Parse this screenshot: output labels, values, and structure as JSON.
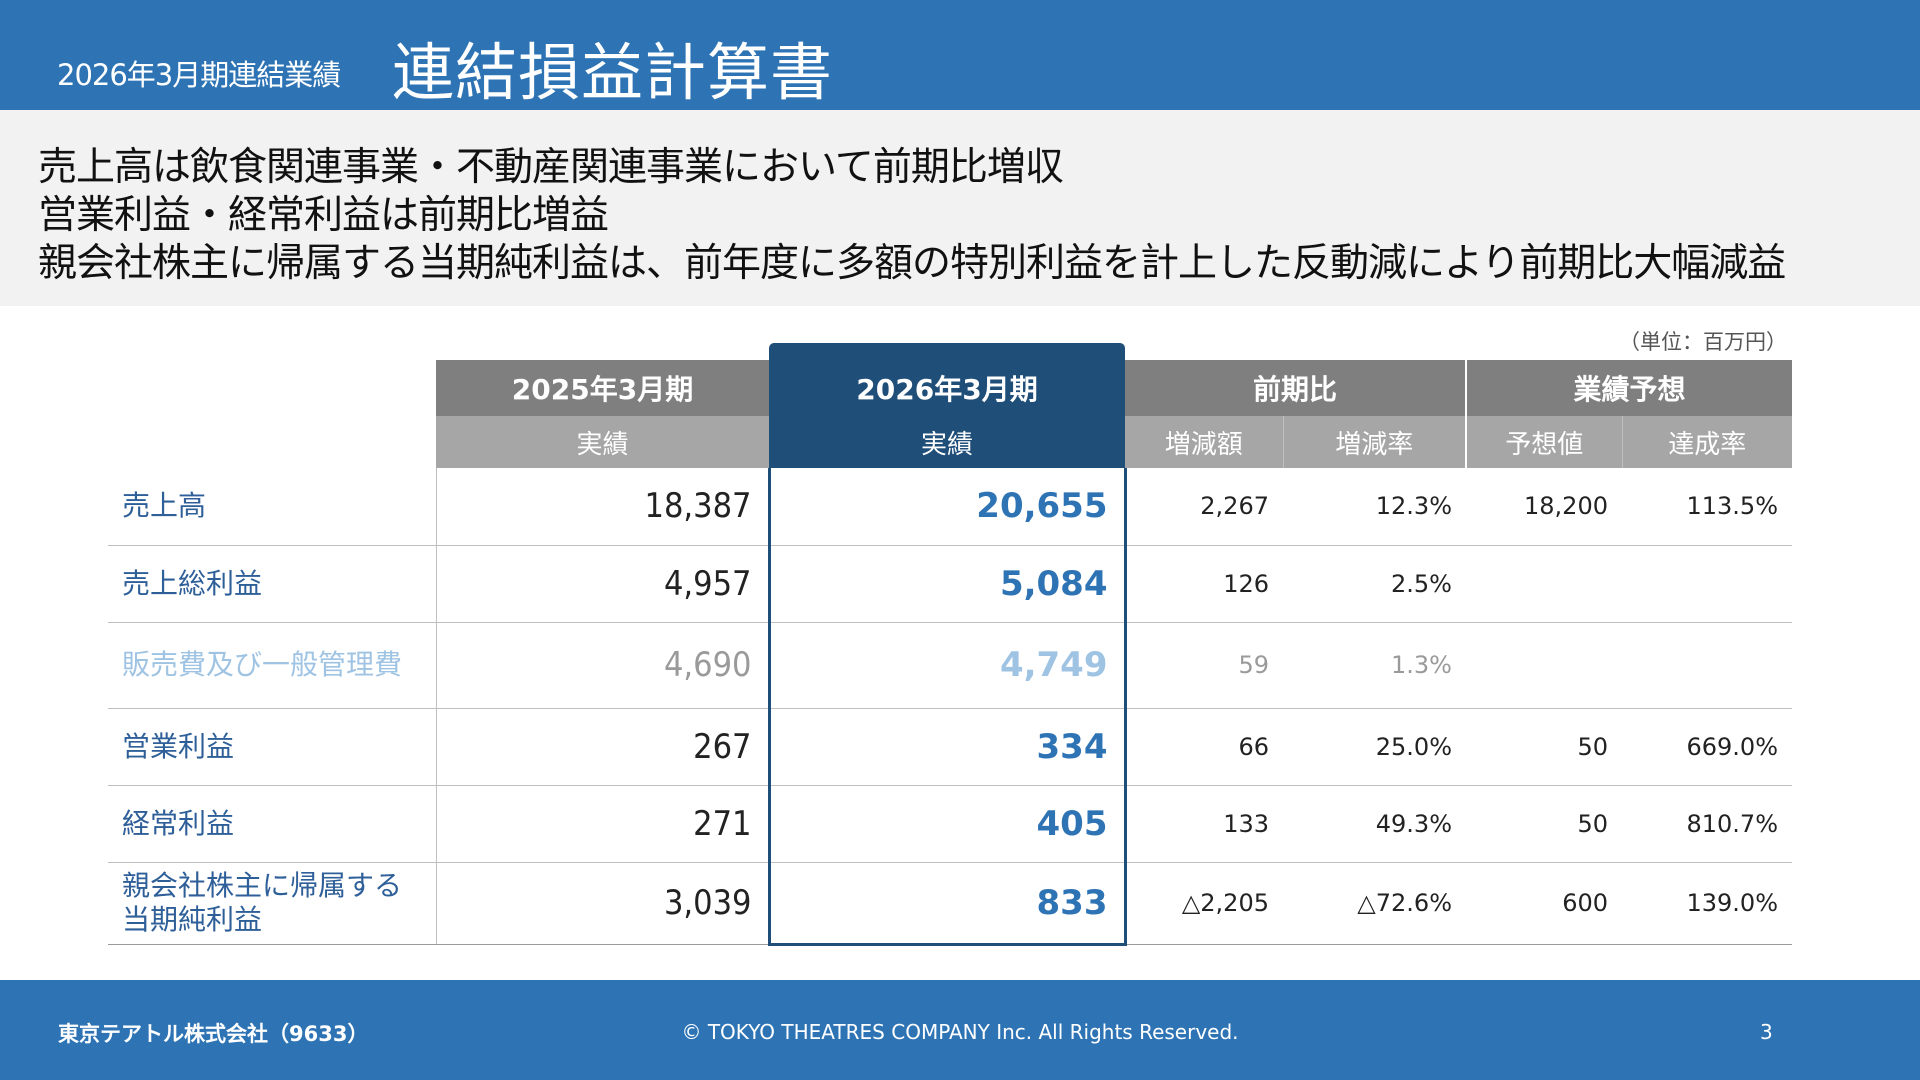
{
  "header": {
    "subtitle": "2026年3月期連結業績",
    "title": "連結損益計算書"
  },
  "summary": {
    "lines": [
      "売上高は飲食関連事業・不動産関連事業において前期比増収",
      "営業利益・経常利益は前期比増益",
      "親会社株主に帰属する当期純利益は、前年度に多額の特別利益を計上した反動減により前期比大幅減益"
    ]
  },
  "unit_note": "（単位：百万円）",
  "table": {
    "group_headers": {
      "prev": "2025年3月期",
      "cur": "2026年3月期",
      "yoy": "前期比",
      "forecast": "業績予想"
    },
    "sub_headers": {
      "prev": "実績",
      "cur": "実績",
      "yoy_amount": "増減額",
      "yoy_rate": "増減率",
      "forecast_value": "予想値",
      "forecast_rate": "達成率"
    },
    "rows": [
      {
        "label": "売上高",
        "prev": "18,387",
        "cur": "20,655",
        "diff": "2,267",
        "rate": "12.3%",
        "fc": "18,200",
        "ach": "113.5%"
      },
      {
        "label": "売上総利益",
        "prev": "4,957",
        "cur": "5,084",
        "diff": "126",
        "rate": "2.5%",
        "fc": "",
        "ach": ""
      },
      {
        "label": "販売費及び一般管理費",
        "prev": "4,690",
        "cur": "4,749",
        "diff": "59",
        "rate": "1.3%",
        "fc": "",
        "ach": ""
      },
      {
        "label": "営業利益",
        "prev": "267",
        "cur": "334",
        "diff": "66",
        "rate": "25.0%",
        "fc": "50",
        "ach": "669.0%"
      },
      {
        "label": "経常利益",
        "prev": "271",
        "cur": "405",
        "diff": "133",
        "rate": "49.3%",
        "fc": "50",
        "ach": "810.7%"
      },
      {
        "label_line1": "親会社株主に帰属する",
        "label_line2": "当期純利益",
        "prev": "3,039",
        "cur": "833",
        "diff": "△2,205",
        "rate": "△72.6%",
        "fc": "600",
        "ach": "139.0%"
      }
    ]
  },
  "footer": {
    "company": "東京テアトル株式会社（9633）",
    "copyright": "© TOKYO THEATRES COMPANY Inc. All Rights Reserved.",
    "page": "3"
  }
}
